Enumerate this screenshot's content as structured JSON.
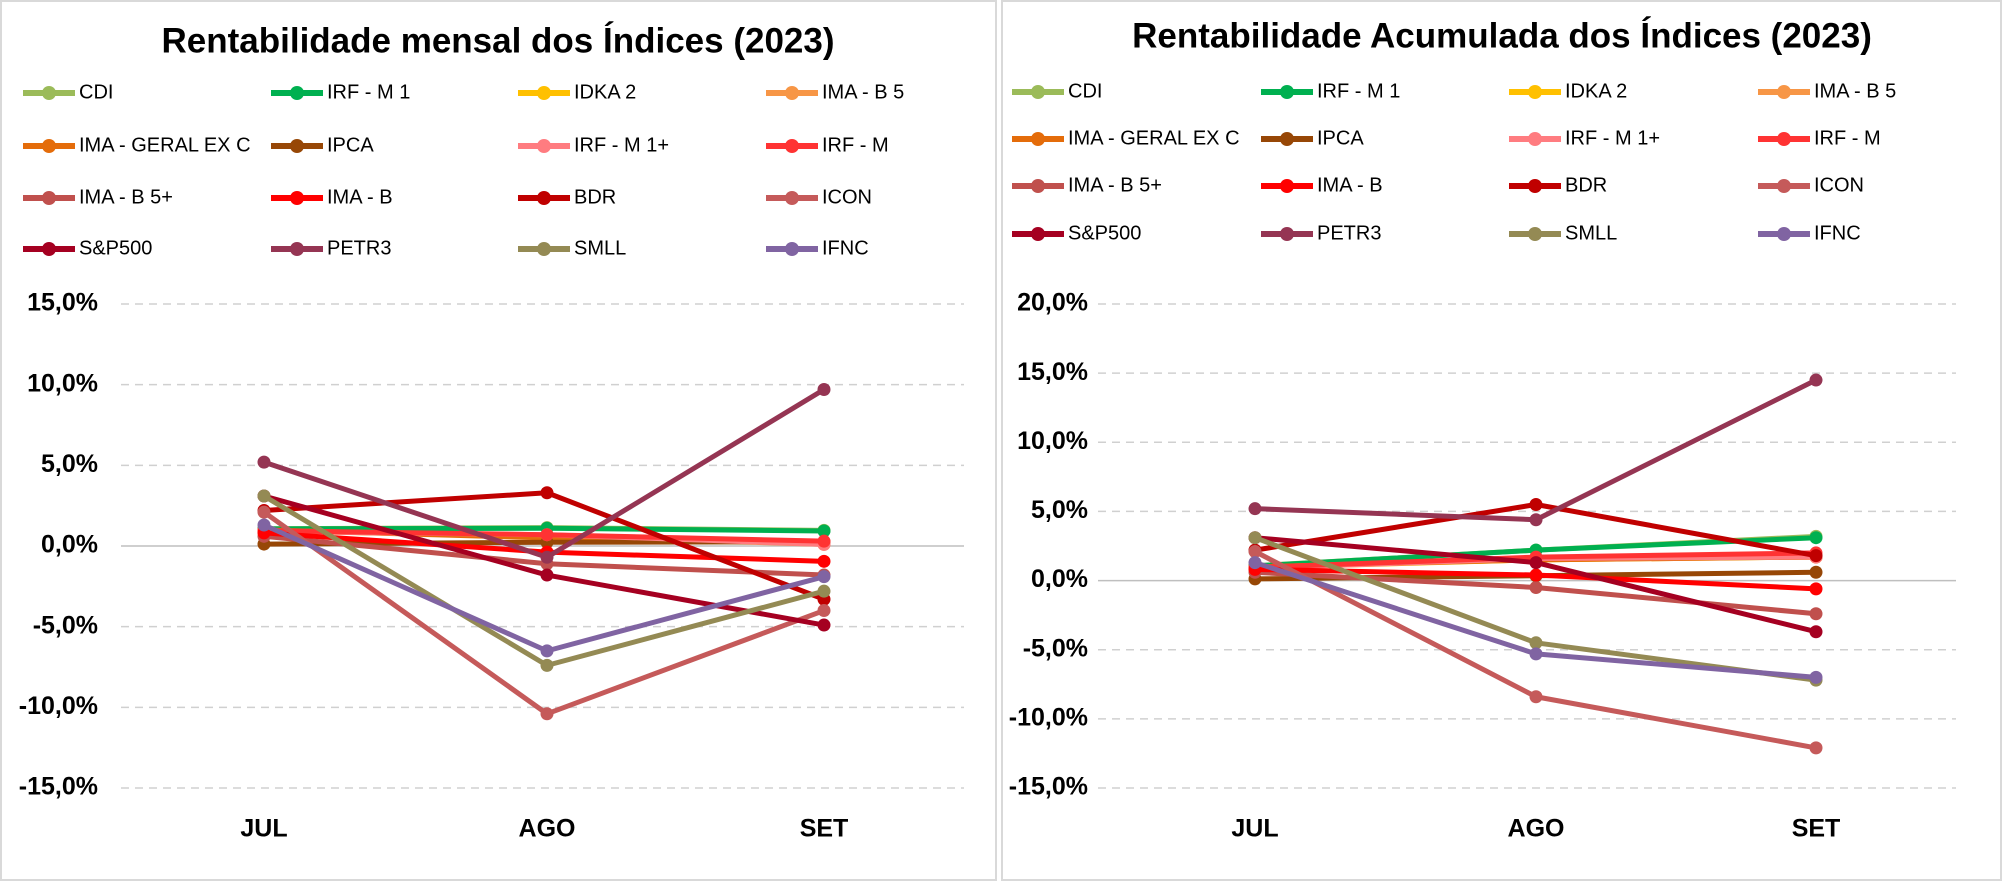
{
  "chart_data": [
    {
      "type": "line",
      "title": "Rentabilidade mensal dos Índices (2023)",
      "categories": [
        "JUL",
        "AGO",
        "SET"
      ],
      "ylim": [
        -15,
        15
      ],
      "yticks": [
        {
          "value": -15,
          "label": "-15,0%"
        },
        {
          "value": -10,
          "label": "-10,0%"
        },
        {
          "value": -5,
          "label": "-5,0%"
        },
        {
          "value": 0,
          "label": "0,0%"
        },
        {
          "value": 5,
          "label": "5,0%"
        },
        {
          "value": 10,
          "label": "10,0%"
        },
        {
          "value": 15,
          "label": "15,0%"
        }
      ],
      "grid": true,
      "series": [
        {
          "name": "CDI",
          "color": "#9bbb59",
          "values": [
            1.07,
            1.14,
            0.97
          ]
        },
        {
          "name": "IRF - M 1",
          "color": "#00b050",
          "values": [
            1.06,
            1.1,
            0.93
          ]
        },
        {
          "name": "IDKA 2",
          "color": "#ffc000",
          "values": [
            0.94,
            0.6,
            0.2
          ]
        },
        {
          "name": "IMA - B 5",
          "color": "#f79646",
          "values": [
            0.97,
            0.6,
            0.1
          ]
        },
        {
          "name": "IMA - GERAL EX C",
          "color": "#e46c0a",
          "values": [
            1.0,
            0.5,
            0.2
          ]
        },
        {
          "name": "IPCA",
          "color": "#974706",
          "values": [
            0.12,
            0.23,
            0.26
          ]
        },
        {
          "name": "IRF - M 1+",
          "color": "#ff7c80",
          "values": [
            0.9,
            0.7,
            0.1
          ]
        },
        {
          "name": "IRF - M",
          "color": "#ff3333",
          "values": [
            0.95,
            0.7,
            0.3
          ]
        },
        {
          "name": "IMA - B 5+",
          "color": "#c0504d",
          "values": [
            0.6,
            -1.1,
            -1.8
          ]
        },
        {
          "name": "IMA - B",
          "color": "#ff0000",
          "values": [
            0.81,
            -0.38,
            -0.95
          ]
        },
        {
          "name": "BDR",
          "color": "#c00000",
          "values": [
            2.2,
            3.3,
            -3.3
          ]
        },
        {
          "name": "ICON",
          "color": "#c55a5a",
          "values": [
            2.1,
            -10.4,
            -4.0
          ]
        },
        {
          "name": "S&P500",
          "color": "#a50021",
          "values": [
            3.1,
            -1.8,
            -4.9
          ]
        },
        {
          "name": "PETR3",
          "color": "#953553",
          "values": [
            5.2,
            -0.7,
            9.7
          ]
        },
        {
          "name": "SMLL",
          "color": "#948a54",
          "values": [
            3.1,
            -7.4,
            -2.8
          ]
        },
        {
          "name": "IFNC",
          "color": "#8064a2",
          "values": [
            1.3,
            -6.5,
            -1.9
          ]
        }
      ]
    },
    {
      "type": "line",
      "title": "Rentabilidade Acumulada dos Índices (2023)",
      "categories": [
        "JUL",
        "AGO",
        "SET"
      ],
      "ylim": [
        -15,
        20
      ],
      "yticks": [
        {
          "value": -15,
          "label": "-15,0%"
        },
        {
          "value": -10,
          "label": "-10,0%"
        },
        {
          "value": -5,
          "label": "-5,0%"
        },
        {
          "value": 0,
          "label": "0,0%"
        },
        {
          "value": 5,
          "label": "5,0%"
        },
        {
          "value": 10,
          "label": "10,0%"
        },
        {
          "value": 15,
          "label": "15,0%"
        },
        {
          "value": 20,
          "label": "20,0%"
        }
      ],
      "grid": true,
      "series": [
        {
          "name": "CDI",
          "color": "#9bbb59",
          "values": [
            1.07,
            2.2,
            3.2
          ]
        },
        {
          "name": "IRF - M 1",
          "color": "#00b050",
          "values": [
            1.06,
            2.2,
            3.1
          ]
        },
        {
          "name": "IDKA 2",
          "color": "#ffc000",
          "values": [
            0.94,
            1.5,
            1.7
          ]
        },
        {
          "name": "IMA - B 5",
          "color": "#f79646",
          "values": [
            0.97,
            1.6,
            1.7
          ]
        },
        {
          "name": "IMA - GERAL EX C",
          "color": "#e46c0a",
          "values": [
            1.0,
            1.5,
            1.7
          ]
        },
        {
          "name": "IPCA",
          "color": "#974706",
          "values": [
            0.12,
            0.35,
            0.6
          ]
        },
        {
          "name": "IRF - M 1+",
          "color": "#ff7c80",
          "values": [
            0.9,
            1.6,
            1.7
          ]
        },
        {
          "name": "IRF - M",
          "color": "#ff3333",
          "values": [
            0.95,
            1.7,
            2.0
          ]
        },
        {
          "name": "IMA - B 5+",
          "color": "#c0504d",
          "values": [
            0.6,
            -0.5,
            -2.4
          ]
        },
        {
          "name": "IMA - B",
          "color": "#ff0000",
          "values": [
            0.81,
            0.4,
            -0.6
          ]
        },
        {
          "name": "BDR",
          "color": "#c00000",
          "values": [
            2.2,
            5.5,
            1.8
          ]
        },
        {
          "name": "ICON",
          "color": "#c55a5a",
          "values": [
            2.1,
            -8.4,
            -12.1
          ]
        },
        {
          "name": "S&P500",
          "color": "#a50021",
          "values": [
            3.1,
            1.3,
            -3.7
          ]
        },
        {
          "name": "PETR3",
          "color": "#953553",
          "values": [
            5.2,
            4.4,
            14.5
          ]
        },
        {
          "name": "SMLL",
          "color": "#948a54",
          "values": [
            3.1,
            -4.5,
            -7.2
          ]
        },
        {
          "name": "IFNC",
          "color": "#8064a2",
          "values": [
            1.3,
            -5.3,
            -7.0
          ]
        }
      ]
    }
  ]
}
